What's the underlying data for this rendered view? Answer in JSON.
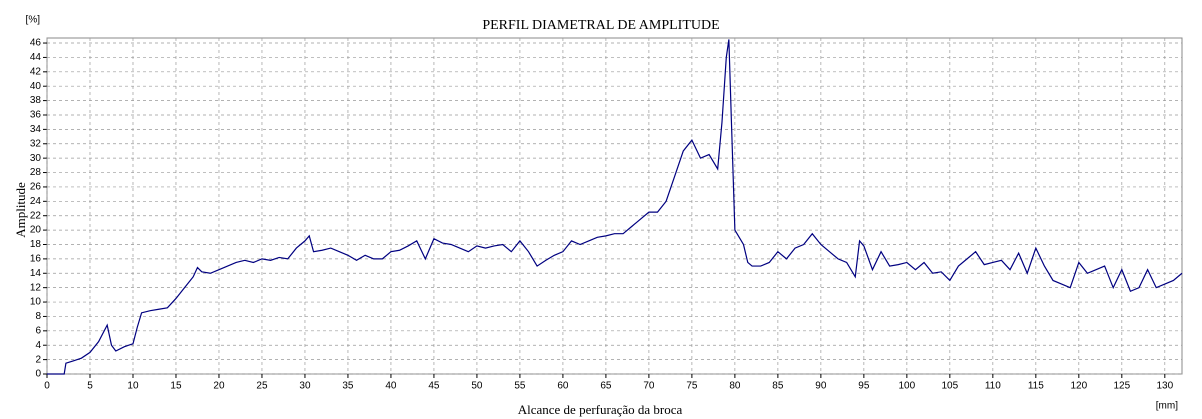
{
  "chart_data": {
    "type": "line",
    "title": "PERFIL DIAMETRAL DE AMPLITUDE",
    "x_label": "Alcance de perfuração da broca",
    "y_label": "Amplitude",
    "y_unit": "[%]",
    "x_unit": "[mm]",
    "xlim": [
      0,
      132
    ],
    "ylim": [
      0,
      46.7
    ],
    "xticks": [
      0,
      5,
      10,
      15,
      20,
      25,
      30,
      35,
      40,
      45,
      50,
      55,
      60,
      65,
      70,
      75,
      80,
      85,
      90,
      95,
      100,
      105,
      110,
      115,
      120,
      125,
      130
    ],
    "yticks": [
      0,
      2,
      4,
      6,
      8,
      10,
      12,
      14,
      16,
      18,
      20,
      22,
      24,
      26,
      28,
      30,
      32,
      34,
      36,
      38,
      40,
      42,
      44,
      46
    ],
    "grid": true,
    "series": [
      {
        "name": "Amplitude",
        "color": "#000080",
        "x": [
          0,
          1,
          2,
          2.2,
          3,
          4,
          5,
          6,
          7,
          7.5,
          8,
          9,
          10,
          10.5,
          11,
          12,
          13,
          14,
          15,
          16,
          17,
          17.5,
          18,
          19,
          20,
          21,
          22,
          23,
          24,
          25,
          26,
          27,
          28,
          29,
          30,
          30.5,
          31,
          32,
          33,
          34,
          35,
          36,
          37,
          38,
          39,
          40,
          41,
          42,
          43,
          44,
          45,
          46,
          47,
          48,
          49,
          50,
          51,
          52,
          53,
          54,
          55,
          56,
          57,
          58,
          59,
          60,
          61,
          62,
          63,
          64,
          65,
          66,
          67,
          68,
          69,
          70,
          71,
          72,
          73,
          74,
          75,
          76,
          77,
          78,
          78.5,
          79,
          79.3,
          79.6,
          80,
          81,
          81.5,
          82,
          83,
          84,
          85,
          86,
          87,
          88,
          89,
          90,
          91,
          92,
          93,
          94,
          94.5,
          95,
          96,
          97,
          98,
          99,
          100,
          101,
          102,
          103,
          104,
          105,
          106,
          107,
          108,
          109,
          110,
          111,
          112,
          113,
          114,
          115,
          116,
          117,
          118,
          119,
          120,
          121,
          122,
          123,
          124,
          125,
          126,
          127,
          128,
          129,
          130,
          131,
          132
        ],
        "values": [
          0,
          0,
          0,
          1.5,
          1.8,
          2.2,
          3,
          4.5,
          6.8,
          4,
          3.2,
          3.8,
          4.2,
          6.5,
          8.5,
          8.8,
          9,
          9.2,
          10.5,
          12,
          13.5,
          14.8,
          14.2,
          14,
          14.5,
          15,
          15.5,
          15.8,
          15.5,
          16,
          15.8,
          16.2,
          16,
          17.5,
          18.5,
          19.2,
          17,
          17.2,
          17.5,
          17,
          16.5,
          15.8,
          16.5,
          16,
          16,
          17,
          17.2,
          17.8,
          18.5,
          16,
          18.8,
          18.2,
          18,
          17.5,
          17,
          17.8,
          17.5,
          17.8,
          18,
          17,
          18.5,
          17,
          15,
          15.8,
          16.5,
          17,
          18.5,
          18,
          18.5,
          19,
          19.2,
          19.5,
          19.5,
          20.5,
          21.5,
          22.5,
          22.5,
          24,
          27.5,
          31,
          32.5,
          30,
          30.5,
          28.5,
          35,
          44,
          46.5,
          35,
          20,
          18,
          15.5,
          15,
          15,
          15.5,
          17,
          16,
          17.5,
          18,
          19.5,
          18,
          17,
          16,
          15.5,
          13.5,
          18.5,
          17.8,
          14.5,
          17,
          15,
          15.2,
          15.5,
          14.5,
          15.5,
          14,
          14.2,
          13,
          15,
          16,
          17,
          15.2,
          15.5,
          15.8,
          14.5,
          16.8,
          14,
          17.5,
          15,
          13,
          12.5,
          12,
          15.5,
          14,
          14.5,
          15,
          12,
          14.5,
          11.5,
          12,
          14.5,
          12,
          12.5,
          13,
          14
        ]
      }
    ]
  }
}
